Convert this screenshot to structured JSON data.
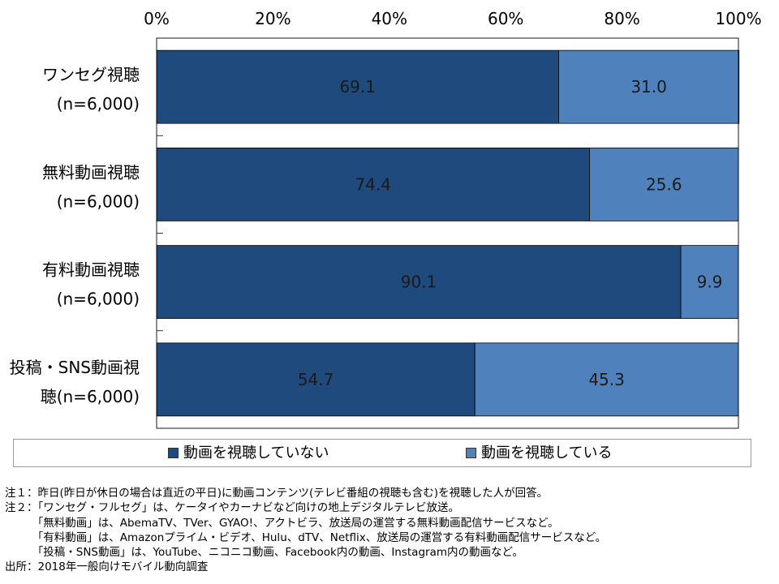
{
  "chart_data": {
    "type": "bar",
    "orientation": "horizontal",
    "stacked": "percent",
    "categories": [
      [
        "ワンセグ視聴",
        "(n=6,000)"
      ],
      [
        "無料動画視聴",
        "(n=6,000)"
      ],
      [
        "有料動画視聴",
        "(n=6,000)"
      ],
      [
        "投稿・SNS動画視",
        "聴(n=6,000)"
      ]
    ],
    "series": [
      {
        "name": "動画を視聴していない",
        "color": "#1f4a7e",
        "values": [
          69.1,
          74.4,
          90.1,
          54.7
        ]
      },
      {
        "name": "動画を視聴している",
        "color": "#4f81bd",
        "values": [
          31.0,
          25.6,
          9.9,
          45.3
        ]
      }
    ],
    "value_labels": [
      [
        "69.1",
        "74.4",
        "90.1",
        "54.7"
      ],
      [
        "31.0",
        "25.6",
        "9.9",
        "45.3"
      ]
    ],
    "xlim": [
      0,
      100
    ],
    "ticks": [
      "0%",
      "20%",
      "40%",
      "60%",
      "80%",
      "100%"
    ],
    "x_axis_position": "top",
    "grid": false,
    "legend_position": "bottom"
  },
  "notes": [
    "注１：昨日(昨日が休日の場合は直近の平日)に動画コンテンツ(テレビ番組の視聴も含む)を視聴した人が回答。",
    "注２：「ワンセグ・フルセグ」は、ケータイやカーナビなど向けの地上デジタルテレビ放送。",
    "　　　「無料動画」は、AbemaTV、TVer、GYAO!、アクトビラ、放送局の運営する無料動画配信サービスなど。",
    "　　　「有料動画」は、Amazonプライム・ビデオ、Hulu、dTV、Netflix、放送局の運営する有料動画配信サービスなど。",
    "　　　「投稿・SNS動画」は、YouTube、ニコニコ動画、Facebook内の動画、Instagram内の動画など。",
    "出所：2018年一般向けモバイル動向調査"
  ]
}
